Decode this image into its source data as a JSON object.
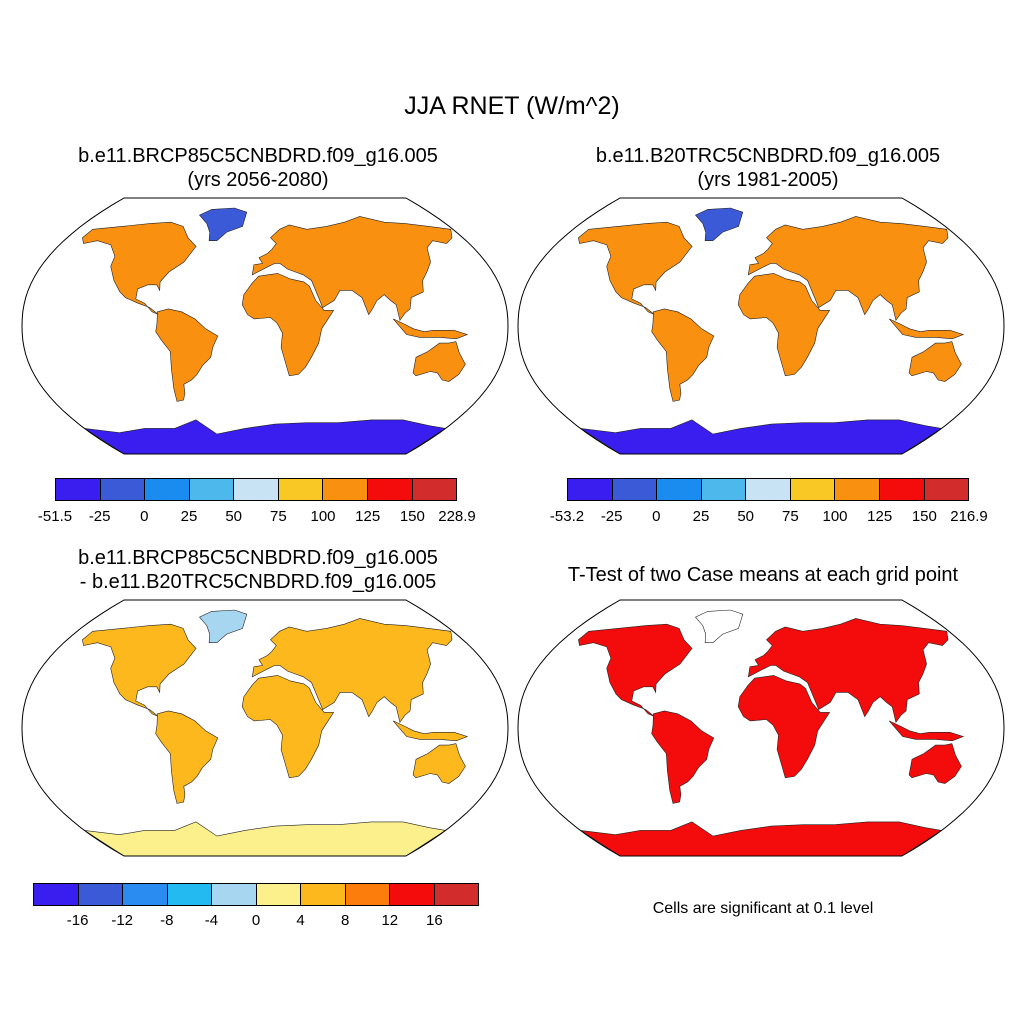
{
  "title": "JJA RNET (W/m^2)",
  "panels": {
    "future": {
      "title1": "b.e11.BRCP85C5CNBDRD.f09_g16.005",
      "title2": "(yrs 2056-2080)",
      "labels": [
        "-51.5",
        "-25",
        "0",
        "25",
        "50",
        "75",
        "100",
        "125",
        "150",
        "228.9"
      ],
      "colors": [
        "#3a1eef",
        "#3a5ad8",
        "#1a8cf0",
        "#4cb8ec",
        "#c8e4f4",
        "#f9c825",
        "#f99010",
        "#f40b0b",
        "#d22c2c"
      ]
    },
    "historical": {
      "title1": "b.e11.B20TRC5CNBDRD.f09_g16.005",
      "title2": "(yrs 1981-2005)",
      "labels": [
        "-53.2",
        "-25",
        "0",
        "25",
        "50",
        "75",
        "100",
        "125",
        "150",
        "216.9"
      ],
      "colors": [
        "#3a1eef",
        "#3a5ad8",
        "#1a8cf0",
        "#4cb8ec",
        "#c8e4f4",
        "#f9c825",
        "#f99010",
        "#f40b0b",
        "#d22c2c"
      ]
    },
    "difference": {
      "title1": "b.e11.BRCP85C5CNBDRD.f09_g16.005",
      "title2": "- b.e11.B20TRC5CNBDRD.f09_g16.005",
      "labels": [
        "-16",
        "-12",
        "-8",
        "-4",
        "0",
        "4",
        "8",
        "12",
        "16"
      ],
      "colors": [
        "#3a1eef",
        "#3a5ad8",
        "#2a8cf0",
        "#22baf0",
        "#a6d6f0",
        "#fcf08c",
        "#fcb81c",
        "#fc7c0c",
        "#f40b0b",
        "#d22c2c"
      ]
    },
    "ttest": {
      "title": "T-Test of two Case means at each grid point",
      "note": "Cells are significant at 0.1 level",
      "sig_color": "#f40b0b"
    }
  }
}
